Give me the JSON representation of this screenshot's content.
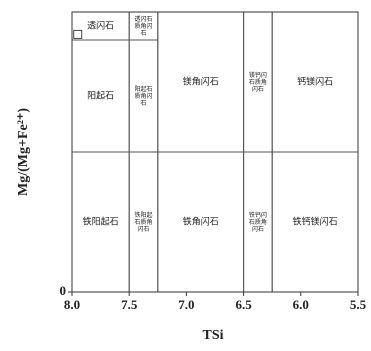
{
  "chart_data": {
    "type": "scatter",
    "x_label": "TSi",
    "y_label": "Mg/(Mg+Fe²⁺)",
    "xlim": [
      8.0,
      5.5
    ],
    "ylim": [
      0,
      1
    ],
    "xticks": [
      {
        "value": 8.0,
        "label": "8.0"
      },
      {
        "value": 7.5,
        "label": "7.5"
      },
      {
        "value": 7.0,
        "label": "7.0"
      },
      {
        "value": 6.5,
        "label": "6.5"
      },
      {
        "value": 6.0,
        "label": "6.0"
      },
      {
        "value": 5.5,
        "label": "5.5"
      }
    ],
    "yticks": [
      0
    ],
    "regions": [
      {
        "label": "透闪石",
        "xlim": [
          8.0,
          7.5
        ],
        "ylim": [
          0.9,
          1
        ]
      },
      {
        "label": "阳起石",
        "xlim": [
          8.0,
          7.5
        ],
        "ylim": [
          0.5,
          0.9
        ]
      },
      {
        "label": "铁阳起石",
        "xlim": [
          8.0,
          7.5
        ],
        "ylim": [
          0,
          0.5
        ]
      },
      {
        "label": "透闪石质角闪石",
        "xlim": [
          7.5,
          7.25
        ],
        "ylim": [
          0.9,
          1
        ]
      },
      {
        "label": "阳起石质角闪石",
        "xlim": [
          7.5,
          7.25
        ],
        "ylim": [
          0.5,
          0.9
        ]
      },
      {
        "label": "铁阳起石质角闪石",
        "xlim": [
          7.5,
          7.25
        ],
        "ylim": [
          0,
          0.5
        ]
      },
      {
        "label": "镁角闪石",
        "xlim": [
          7.25,
          6.5
        ],
        "ylim": [
          0.5,
          1
        ]
      },
      {
        "label": "铁角闪石",
        "xlim": [
          7.25,
          6.5
        ],
        "ylim": [
          0,
          0.5
        ]
      },
      {
        "label": "镁钙闪石质角闪石",
        "xlim": [
          6.5,
          6.25
        ],
        "ylim": [
          0.5,
          1
        ]
      },
      {
        "label": "铁钙闪石质角闪石",
        "xlim": [
          6.5,
          6.25
        ],
        "ylim": [
          0,
          0.5
        ]
      },
      {
        "label": "钙镁闪石",
        "xlim": [
          6.25,
          5.5
        ],
        "ylim": [
          0.5,
          1
        ]
      },
      {
        "label": "铁钙镁闪石",
        "xlim": [
          6.25,
          5.5
        ],
        "ylim": [
          0,
          0.5
        ]
      }
    ],
    "points": {
      "x": [
        7.95
      ],
      "y": [
        0.92
      ],
      "color": "#444444"
    }
  }
}
